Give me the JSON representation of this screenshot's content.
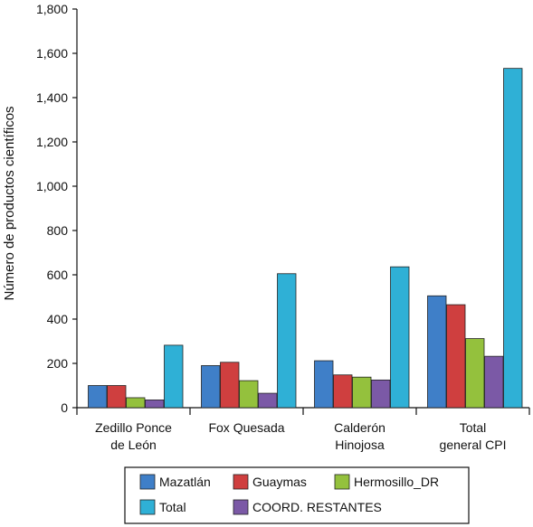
{
  "chart_data": {
    "type": "bar",
    "title": "",
    "xlabel": "",
    "ylabel": "Número de productos científicos",
    "ylim": [
      0,
      1800
    ],
    "yticks": [
      "0",
      "200",
      "400",
      "600",
      "800",
      "1,000",
      "1,200",
      "1,400",
      "1,600",
      "1,800"
    ],
    "categories": [
      [
        "Zedillo Ponce",
        "de León"
      ],
      [
        "Fox Quesada"
      ],
      [
        "Calderón",
        "Hinojosa"
      ],
      [
        "Total",
        "general CPI"
      ]
    ],
    "series": [
      {
        "name": "Mazatlán",
        "color": "#3f7fc8",
        "values": [
          100,
          190,
          212,
          505
        ]
      },
      {
        "name": "Guaymas",
        "color": "#cf3f3f",
        "values": [
          100,
          205,
          148,
          465
        ]
      },
      {
        "name": "Hermosillo_DR",
        "color": "#94c13d",
        "values": [
          45,
          122,
          138,
          312
        ]
      },
      {
        "name": "COORD. RESTANTES",
        "color": "#7b59a6",
        "values": [
          35,
          65,
          125,
          232
        ]
      },
      {
        "name": "Total",
        "color": "#2fb0d6",
        "values": [
          282,
          605,
          636,
          1532
        ]
      }
    ],
    "legend": {
      "placement": "bottom",
      "rows": [
        [
          "Mazatlán",
          "Guaymas",
          "Hermosillo_DR"
        ],
        [
          "Total",
          "COORD. RESTANTES"
        ]
      ]
    },
    "grid": false
  }
}
